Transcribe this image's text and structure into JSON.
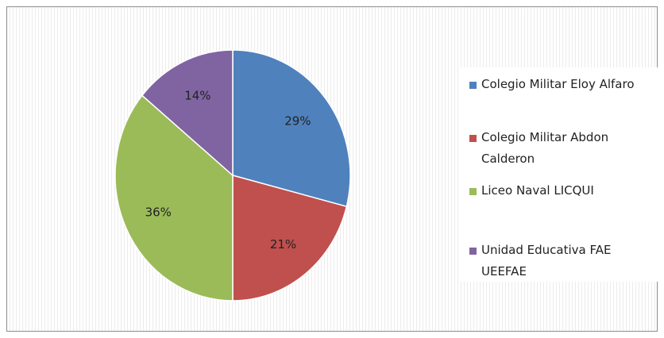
{
  "chart_data": {
    "type": "pie",
    "categories": [
      "Colegio Militar Eloy Alfaro",
      "Colegio Militar Abdon Calderon",
      "Liceo Naval LICQUI",
      "Unidad Educativa FAE UEEFAE"
    ],
    "values": [
      29,
      21,
      36,
      14
    ],
    "value_labels": [
      "29%",
      "21%",
      "36%",
      "14%"
    ],
    "colors": [
      "#4f81bd",
      "#c0504d",
      "#9bbb59",
      "#8064a2"
    ],
    "legend": "right"
  }
}
